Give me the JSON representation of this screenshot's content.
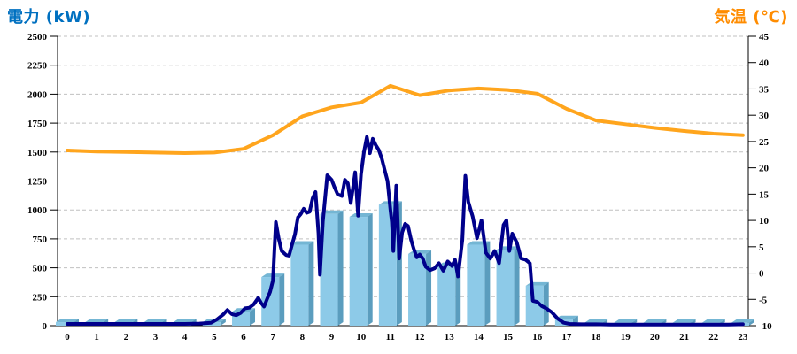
{
  "page": {
    "background": "#FFFFFF"
  },
  "chart_data": {
    "type": "combo-bar-line",
    "categories": [
      "0",
      "1",
      "2",
      "3",
      "4",
      "5",
      "6",
      "7",
      "8",
      "9",
      "10",
      "11",
      "12",
      "13",
      "14",
      "15",
      "16",
      "17",
      "18",
      "19",
      "20",
      "21",
      "22",
      "23"
    ],
    "left_axis": {
      "title": "電力 (kW)",
      "title_color": "#0070C0",
      "min": 0,
      "max": 2500,
      "step": 250,
      "ticks": [
        "0",
        "250",
        "500",
        "750",
        "1000",
        "1250",
        "1500",
        "1750",
        "2000",
        "2250",
        "2500"
      ]
    },
    "right_axis": {
      "title": "気温 (℃)",
      "title_color": "#FF8C00",
      "min": -10,
      "max": 45,
      "step": 5,
      "ticks": [
        "-10",
        "-5",
        "0",
        "5",
        "10",
        "15",
        "20",
        "25",
        "30",
        "35",
        "40",
        "45"
      ],
      "zero_line": true
    },
    "grid": {
      "show": true,
      "color": "#C0C0C0",
      "dash": "4 3"
    },
    "series": [
      {
        "name": "power-bars",
        "type": "bar",
        "axis": "left",
        "color_front": "#8DCAE8",
        "color_side": "#5B9DBE",
        "color_top": "#74B6D4",
        "values": [
          30,
          30,
          30,
          30,
          30,
          30,
          120,
          420,
          700,
          965,
          940,
          1045,
          620,
          515,
          700,
          655,
          345,
          55,
          25,
          25,
          25,
          25,
          25,
          25
        ]
      },
      {
        "name": "power-line",
        "type": "line",
        "axis": "left",
        "color": "#00008B",
        "width": 4,
        "points": [
          [
            0,
            15
          ],
          [
            0.5,
            15
          ],
          [
            1,
            15
          ],
          [
            1.5,
            15
          ],
          [
            2,
            15
          ],
          [
            2.5,
            15
          ],
          [
            3,
            15
          ],
          [
            3.5,
            15
          ],
          [
            4,
            15
          ],
          [
            4.5,
            18
          ],
          [
            4.9,
            25
          ],
          [
            5.1,
            55
          ],
          [
            5.3,
            95
          ],
          [
            5.45,
            135
          ],
          [
            5.6,
            100
          ],
          [
            5.75,
            90
          ],
          [
            5.9,
            110
          ],
          [
            6.05,
            150
          ],
          [
            6.2,
            155
          ],
          [
            6.35,
            185
          ],
          [
            6.5,
            240
          ],
          [
            6.6,
            195
          ],
          [
            6.7,
            165
          ],
          [
            6.8,
            230
          ],
          [
            6.9,
            290
          ],
          [
            7,
            390
          ],
          [
            7.05,
            640
          ],
          [
            7.1,
            895
          ],
          [
            7.2,
            750
          ],
          [
            7.3,
            645
          ],
          [
            7.45,
            610
          ],
          [
            7.55,
            605
          ],
          [
            7.65,
            700
          ],
          [
            7.75,
            790
          ],
          [
            7.85,
            935
          ],
          [
            7.95,
            965
          ],
          [
            8.05,
            1010
          ],
          [
            8.15,
            975
          ],
          [
            8.25,
            985
          ],
          [
            8.35,
            1100
          ],
          [
            8.45,
            1155
          ],
          [
            8.55,
            800
          ],
          [
            8.6,
            440
          ],
          [
            8.7,
            900
          ],
          [
            8.85,
            1300
          ],
          [
            9,
            1260
          ],
          [
            9.1,
            1195
          ],
          [
            9.2,
            1135
          ],
          [
            9.35,
            1120
          ],
          [
            9.45,
            1260
          ],
          [
            9.55,
            1230
          ],
          [
            9.65,
            1060
          ],
          [
            9.8,
            1325
          ],
          [
            9.9,
            950
          ],
          [
            10,
            1310
          ],
          [
            10.1,
            1500
          ],
          [
            10.2,
            1630
          ],
          [
            10.3,
            1490
          ],
          [
            10.4,
            1615
          ],
          [
            10.5,
            1560
          ],
          [
            10.6,
            1520
          ],
          [
            10.7,
            1450
          ],
          [
            10.8,
            1350
          ],
          [
            10.9,
            1250
          ],
          [
            11,
            1000
          ],
          [
            11.05,
            895
          ],
          [
            11.1,
            645
          ],
          [
            11.2,
            1210
          ],
          [
            11.3,
            580
          ],
          [
            11.4,
            805
          ],
          [
            11.5,
            880
          ],
          [
            11.6,
            860
          ],
          [
            11.7,
            745
          ],
          [
            11.8,
            660
          ],
          [
            11.9,
            590
          ],
          [
            12,
            615
          ],
          [
            12.1,
            580
          ],
          [
            12.2,
            510
          ],
          [
            12.35,
            480
          ],
          [
            12.5,
            495
          ],
          [
            12.65,
            540
          ],
          [
            12.8,
            475
          ],
          [
            12.95,
            555
          ],
          [
            13.1,
            515
          ],
          [
            13.2,
            570
          ],
          [
            13.3,
            425
          ],
          [
            13.45,
            740
          ],
          [
            13.55,
            1295
          ],
          [
            13.65,
            1070
          ],
          [
            13.8,
            945
          ],
          [
            13.95,
            755
          ],
          [
            14.1,
            910
          ],
          [
            14.25,
            630
          ],
          [
            14.4,
            580
          ],
          [
            14.55,
            645
          ],
          [
            14.7,
            540
          ],
          [
            14.85,
            870
          ],
          [
            14.95,
            910
          ],
          [
            15.05,
            645
          ],
          [
            15.15,
            795
          ],
          [
            15.3,
            720
          ],
          [
            15.45,
            580
          ],
          [
            15.6,
            570
          ],
          [
            15.75,
            540
          ],
          [
            15.85,
            215
          ],
          [
            16,
            205
          ],
          [
            16.15,
            170
          ],
          [
            16.3,
            150
          ],
          [
            16.5,
            115
          ],
          [
            16.7,
            60
          ],
          [
            16.9,
            25
          ],
          [
            17.1,
            15
          ],
          [
            17.5,
            12
          ],
          [
            18,
            12
          ],
          [
            18.5,
            10
          ],
          [
            19,
            10
          ],
          [
            19.5,
            10
          ],
          [
            20,
            10
          ],
          [
            20.5,
            10
          ],
          [
            21,
            10
          ],
          [
            21.5,
            10
          ],
          [
            22,
            10
          ],
          [
            22.5,
            10
          ],
          [
            23,
            12
          ]
        ]
      },
      {
        "name": "temperature-line",
        "type": "line",
        "axis": "right",
        "color": "#FFA51D",
        "width": 4,
        "values": [
          23.3,
          23.1,
          23.0,
          22.9,
          22.8,
          22.9,
          23.6,
          26.2,
          29.8,
          31.5,
          32.4,
          35.6,
          33.8,
          34.7,
          35.1,
          34.8,
          34.1,
          31.2,
          29.0,
          28.3,
          27.6,
          27.0,
          26.5,
          26.2
        ]
      }
    ]
  }
}
